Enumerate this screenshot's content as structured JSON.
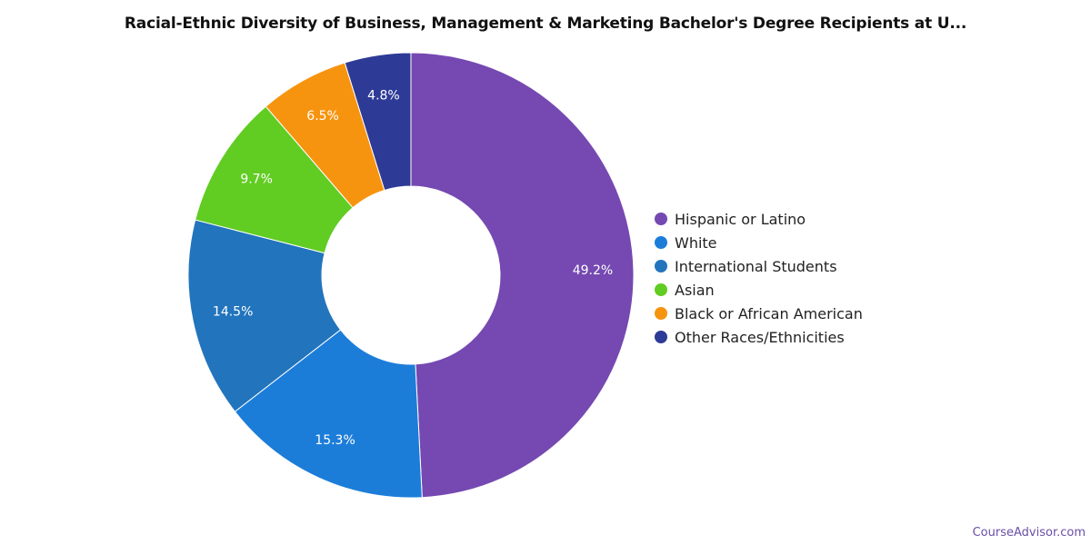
{
  "chart_data": {
    "type": "pie",
    "title": "Racial-Ethnic Diversity of Business, Management & Marketing Bachelor's Degree Recipients at U...",
    "categories": [
      "Hispanic or Latino",
      "White",
      "International Students",
      "Asian",
      "Black or African American",
      "Other Races/Ethnicities"
    ],
    "values": [
      49.2,
      15.3,
      14.5,
      9.7,
      6.5,
      4.8
    ],
    "value_labels": [
      "49.2%",
      "15.3%",
      "14.5%",
      "9.7%",
      "6.5%",
      "4.8%"
    ],
    "colors": [
      "#7549b1",
      "#1c7dd9",
      "#2274bd",
      "#61cc22",
      "#f7940f",
      "#2d3b97"
    ],
    "donut": true,
    "legend_position": "right"
  },
  "watermark": "CourseAdvisor.com"
}
